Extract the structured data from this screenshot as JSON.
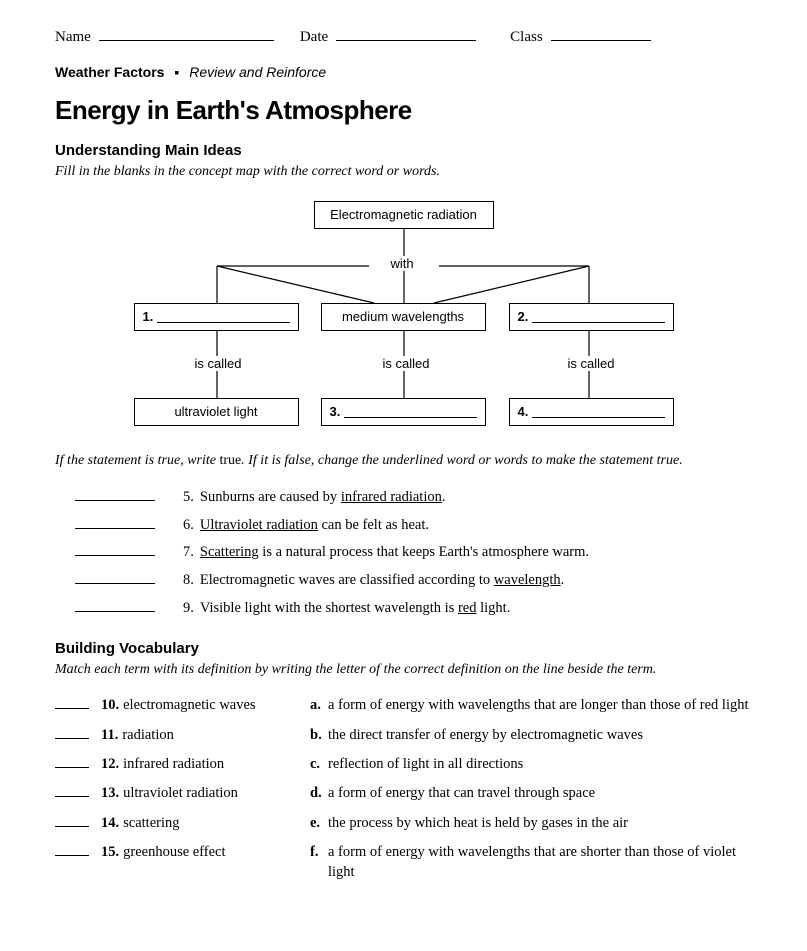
{
  "header": {
    "name_label": "Name",
    "date_label": "Date",
    "class_label": "Class"
  },
  "tag": {
    "bold": "Weather Factors",
    "ital": "Review and Reinforce"
  },
  "title": "Energy in Earth's Atmosphere",
  "section1": {
    "heading": "Understanding Main Ideas",
    "instruction": "Fill in the blanks in the concept map with the correct word or words."
  },
  "diagram": {
    "top_box": "Electromagnetic radiation",
    "with_label": "with",
    "row2_middle": "medium wavelengths",
    "is_called": "is called",
    "row3_left": "ultraviolet light",
    "blank1_num": "1.",
    "blank2_num": "2.",
    "blank3_num": "3.",
    "blank4_num": "4."
  },
  "tf_instruction_pre": "If the statement is true, write ",
  "tf_instruction_true": "true",
  "tf_instruction_post": ". If it is false, change the underlined word or words to make the statement true.",
  "tf_items": [
    {
      "num": "5.",
      "text": "Sunburns are caused by <u>infrared radiation</u>."
    },
    {
      "num": "6.",
      "text": "<u>Ultraviolet radiation</u> can be felt as heat."
    },
    {
      "num": "7.",
      "text": "<u>Scattering</u> is a natural process that keeps Earth's atmosphere warm."
    },
    {
      "num": "8.",
      "text": "Electromagnetic waves are classified according to <u>wavelength</u>."
    },
    {
      "num": "9.",
      "text": "Visible light with the shortest wavelength is <u>red</u> light."
    }
  ],
  "section2": {
    "heading": "Building Vocabulary",
    "instruction": "Match each term with its definition by writing the letter of the correct definition on the line beside the term."
  },
  "terms": [
    {
      "num": "10.",
      "text": "electromagnetic waves"
    },
    {
      "num": "11.",
      "text": "radiation"
    },
    {
      "num": "12.",
      "text": "infrared radiation"
    },
    {
      "num": "13.",
      "text": "ultraviolet radiation"
    },
    {
      "num": "14.",
      "text": "scattering"
    },
    {
      "num": "15.",
      "text": "greenhouse effect"
    }
  ],
  "defs": [
    {
      "letter": "a.",
      "text": "a form of energy with wavelengths that are longer than those of red light"
    },
    {
      "letter": "b.",
      "text": "the direct transfer of energy by electromagnetic waves"
    },
    {
      "letter": "c.",
      "text": "reflection of light in all directions"
    },
    {
      "letter": "d.",
      "text": "a form of energy that can travel through space"
    },
    {
      "letter": "e.",
      "text": "the process by which heat is held by gases in the air"
    },
    {
      "letter": "f.",
      "text": "a form of energy with wavelengths that are shorter than those of violet light"
    }
  ]
}
